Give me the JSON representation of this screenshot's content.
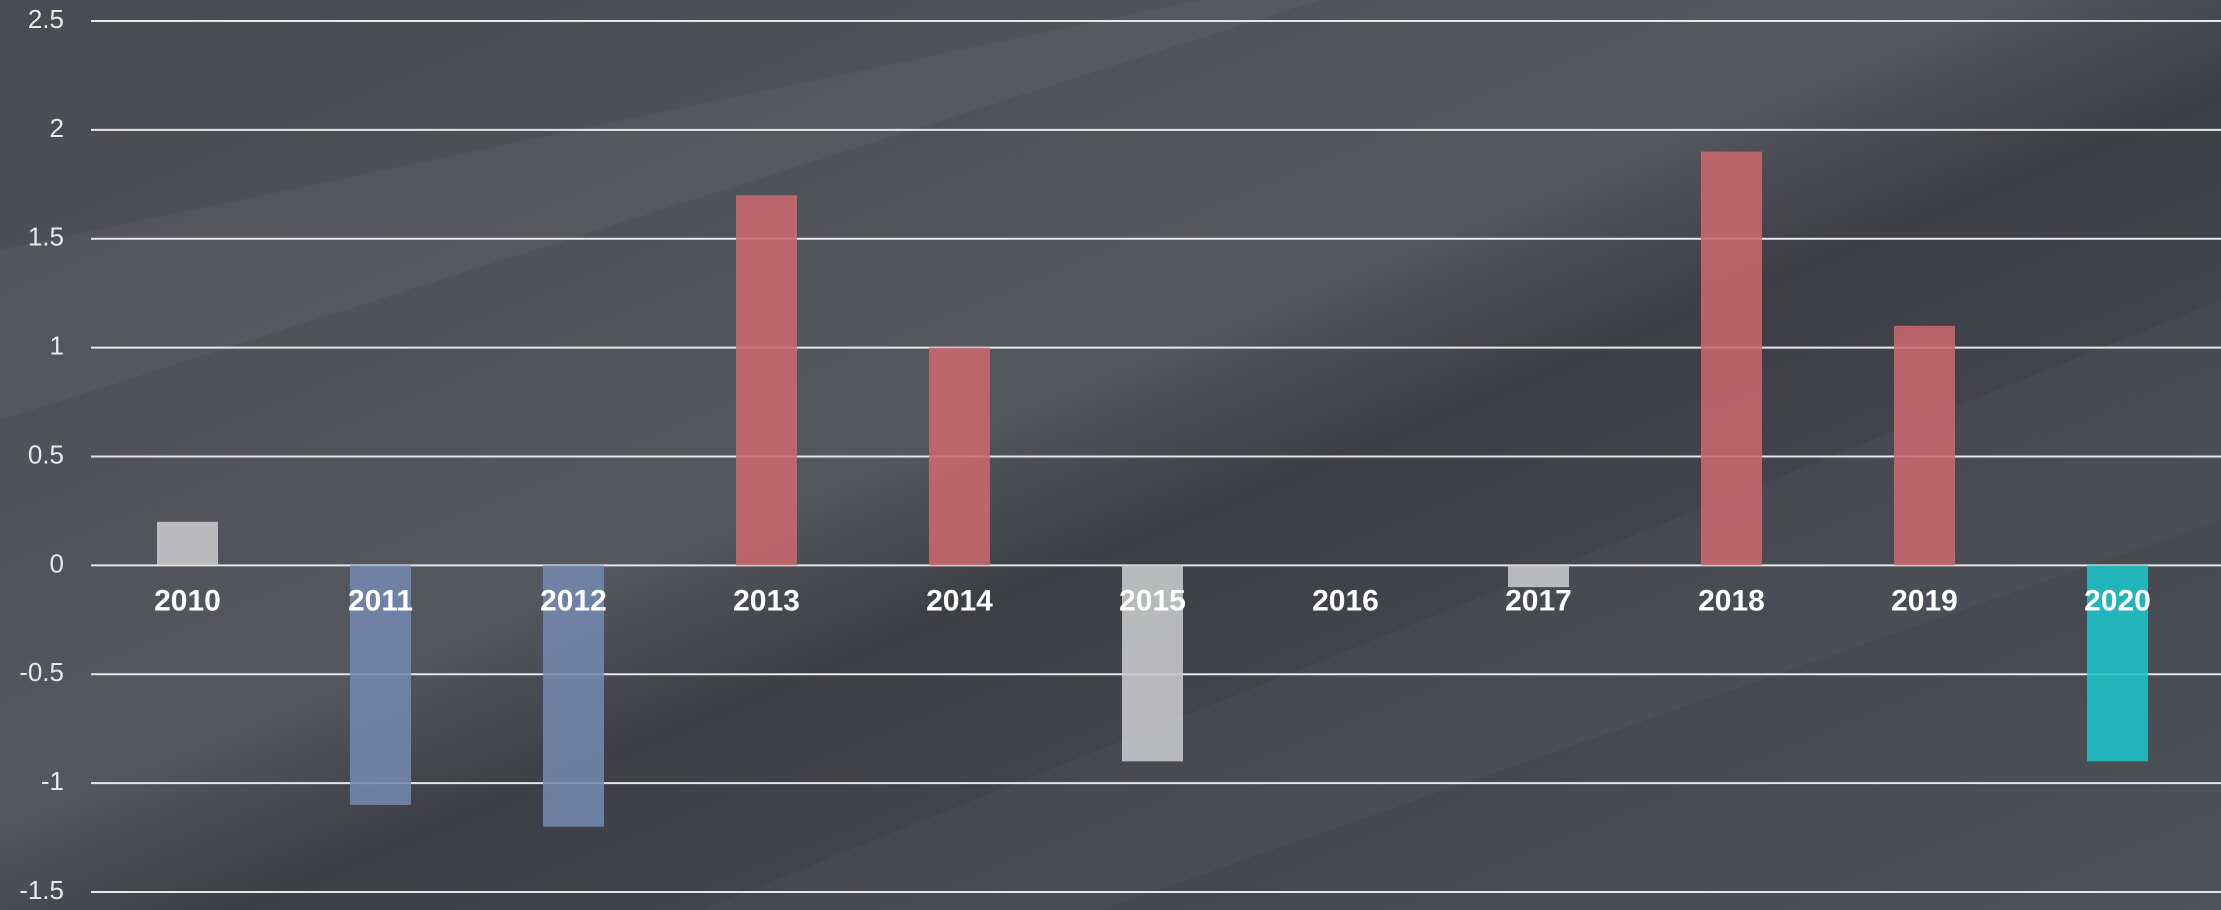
{
  "chart_data": {
    "type": "bar",
    "categories": [
      "2010",
      "2011",
      "2012",
      "2013",
      "2014",
      "2015",
      "2016",
      "2017",
      "2018",
      "2019",
      "2020"
    ],
    "values": [
      0.2,
      -1.1,
      -1.2,
      1.7,
      1.0,
      -0.9,
      0,
      -0.1,
      1.9,
      1.1,
      -0.9
    ],
    "colors": [
      "#c9c9cc",
      "#7487b0",
      "#7487b0",
      "#c96870",
      "#c96870",
      "#c9c9cc",
      "#c9c9cc",
      "#c9c9cc",
      "#c96870",
      "#c96870",
      "#1cc3c6"
    ],
    "ylim": [
      -1.5,
      2.5
    ],
    "yticks": [
      -1.5,
      -1,
      -0.5,
      0,
      0.5,
      1,
      1.5,
      2,
      2.5
    ],
    "grid": true
  }
}
